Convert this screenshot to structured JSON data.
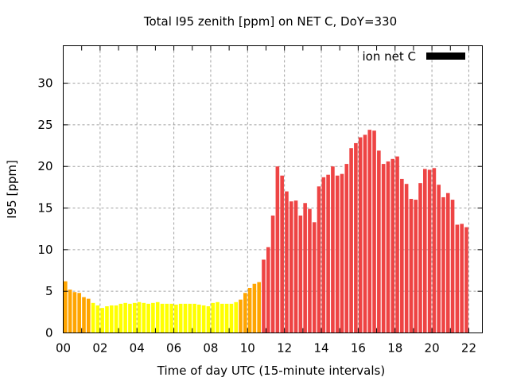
{
  "chart_data": {
    "type": "bar",
    "title": "Total I95 zenith [ppm] on NET C, DoY=330",
    "xlabel": "Time of day UTC (15-minute intervals)",
    "ylabel": "I95 [ppm]",
    "ylim": [
      0,
      34.5
    ],
    "xlim": [
      0,
      22.75
    ],
    "yticks": [
      "0",
      "5",
      "10",
      "15",
      "20",
      "25",
      "30"
    ],
    "xticks": [
      "00",
      "02",
      "04",
      "06",
      "08",
      "10",
      "12",
      "14",
      "16",
      "18",
      "20",
      "22"
    ],
    "grid": true,
    "legend": {
      "label": "ion net C",
      "position": "top-right",
      "color": "#000000"
    },
    "colors": {
      "low": "#ffff00",
      "mid": "#ffa500",
      "high": "#ee4444"
    },
    "thresholds": {
      "mid": 4,
      "high": 7
    },
    "interval_hours": 0.25,
    "values": [
      6.2,
      5.2,
      4.9,
      4.8,
      4.3,
      4.1,
      3.6,
      3.3,
      3.0,
      3.2,
      3.3,
      3.3,
      3.5,
      3.6,
      3.5,
      3.6,
      3.7,
      3.6,
      3.5,
      3.6,
      3.7,
      3.5,
      3.5,
      3.5,
      3.4,
      3.5,
      3.5,
      3.5,
      3.5,
      3.4,
      3.3,
      3.2,
      3.6,
      3.7,
      3.5,
      3.5,
      3.5,
      3.7,
      4.0,
      4.8,
      5.4,
      5.9,
      6.1,
      8.8,
      10.3,
      14.1,
      20.0,
      18.9,
      17.0,
      15.8,
      15.9,
      14.1,
      15.6,
      14.9,
      13.3,
      17.6,
      18.7,
      19.0,
      20.0,
      18.9,
      19.1,
      20.3,
      22.2,
      22.8,
      23.5,
      23.8,
      24.4,
      24.3,
      21.9,
      20.3,
      20.6,
      20.9,
      21.2,
      18.5,
      17.9,
      16.1,
      16.0,
      18.0,
      19.7,
      19.6,
      19.8,
      17.8,
      16.3,
      16.8,
      16.0,
      13.0,
      13.1,
      12.7
    ]
  }
}
